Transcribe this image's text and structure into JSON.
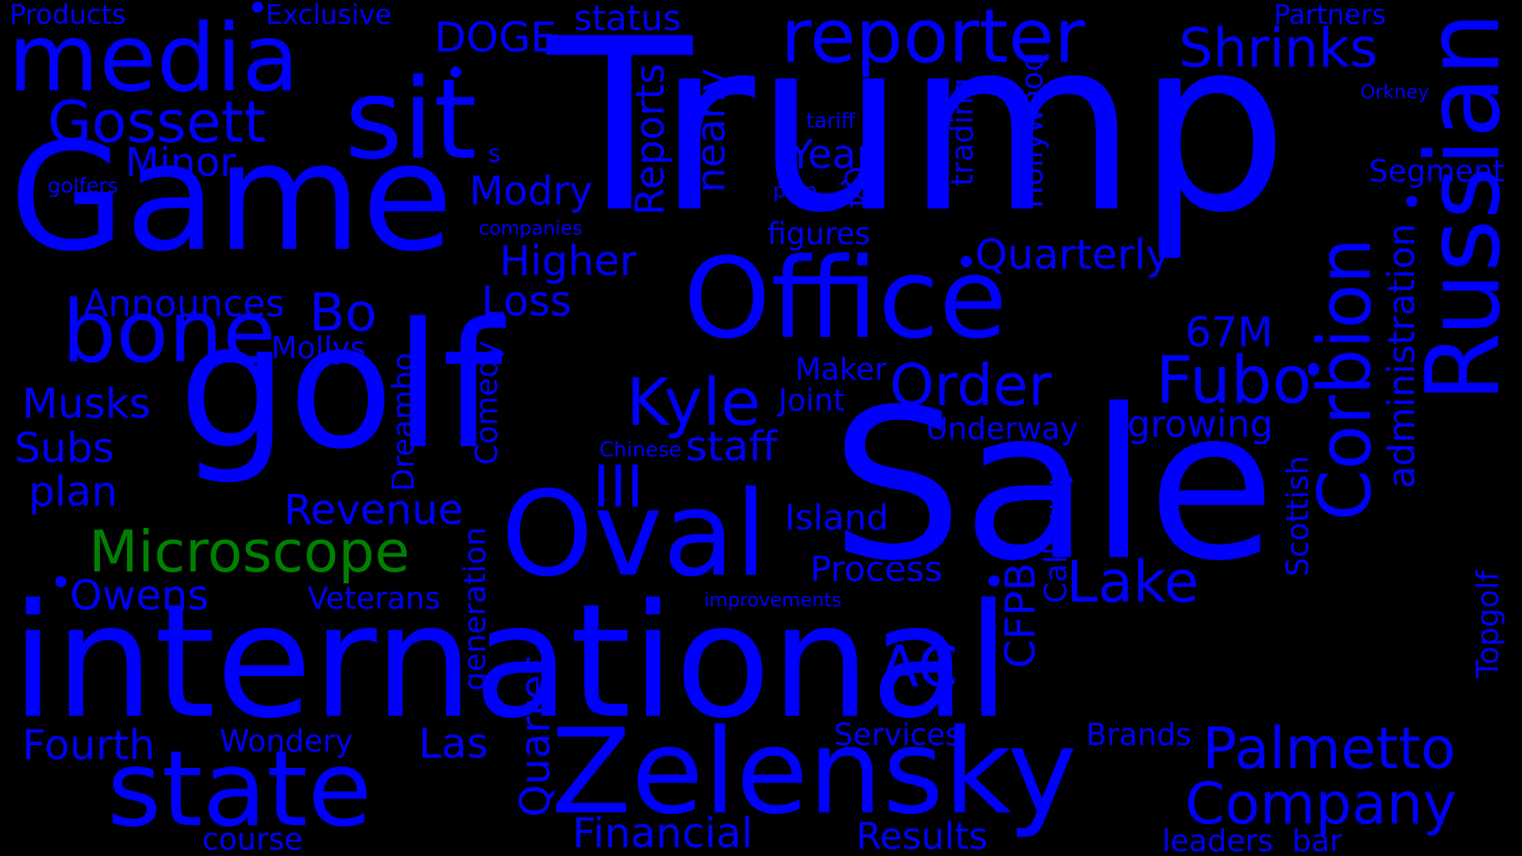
{
  "palette": {
    "background": "#000000",
    "primary": "#0000ff",
    "accent": "#008000"
  },
  "words": [
    {
      "text": "Products",
      "color": "#0000ff"
    },
    {
      "text": "Exclusive",
      "color": "#0000ff"
    },
    {
      "text": "status",
      "color": "#0000ff"
    },
    {
      "text": "Partners",
      "color": "#0000ff"
    },
    {
      "text": "media",
      "color": "#0000ff"
    },
    {
      "text": "DOGE",
      "color": "#0000ff"
    },
    {
      "text": "Trump",
      "color": "#0000ff"
    },
    {
      "text": "reporter",
      "color": "#0000ff"
    },
    {
      "text": "Shrinks",
      "color": "#0000ff"
    },
    {
      "text": "Russian",
      "color": "#0000ff"
    },
    {
      "text": "Orkney",
      "color": "#0000ff"
    },
    {
      "text": "sit",
      "color": "#0000ff"
    },
    {
      "text": "Gossett",
      "color": "#0000ff"
    },
    {
      "text": "tariff",
      "color": "#0000ff"
    },
    {
      "text": "Hollywood",
      "color": "#0000ff"
    },
    {
      "text": "trading",
      "color": "#0000ff"
    },
    {
      "text": "Minor",
      "color": "#0000ff"
    },
    {
      "text": "s",
      "color": "#0000ff"
    },
    {
      "text": "Year",
      "color": "#0000ff"
    },
    {
      "text": "Segment",
      "color": "#0000ff"
    },
    {
      "text": "golfers",
      "color": "#0000ff"
    },
    {
      "text": "Game",
      "color": "#0000ff"
    },
    {
      "text": "Modry",
      "color": "#0000ff"
    },
    {
      "text": "Reports",
      "color": "#0000ff"
    },
    {
      "text": "nearly",
      "color": "#0000ff"
    },
    {
      "text": "pain",
      "color": "#0000ff"
    },
    {
      "text": "Q4",
      "color": "#0000ff"
    },
    {
      "text": "companies",
      "color": "#0000ff"
    },
    {
      "text": "figures",
      "color": "#0000ff"
    },
    {
      "text": "Higher",
      "color": "#0000ff"
    },
    {
      "text": "Quarterly",
      "color": "#0000ff"
    },
    {
      "text": "Corbion",
      "color": "#0000ff"
    },
    {
      "text": "administration",
      "color": "#0000ff"
    },
    {
      "text": "Announces",
      "color": "#0000ff"
    },
    {
      "text": "Loss",
      "color": "#0000ff"
    },
    {
      "text": "Office",
      "color": "#0000ff"
    },
    {
      "text": "Bo",
      "color": "#0000ff"
    },
    {
      "text": "bone",
      "color": "#0000ff"
    },
    {
      "text": "67M",
      "color": "#0000ff"
    },
    {
      "text": "Mollys",
      "color": "#0000ff"
    },
    {
      "text": "Maker",
      "color": "#0000ff"
    },
    {
      "text": "Comedy",
      "color": "#0000ff"
    },
    {
      "text": "Fubo",
      "color": "#0000ff"
    },
    {
      "text": "golf",
      "color": "#0000ff"
    },
    {
      "text": "Kyle",
      "color": "#0000ff"
    },
    {
      "text": "Order",
      "color": "#0000ff"
    },
    {
      "text": "Musks",
      "color": "#0000ff"
    },
    {
      "text": "Joint",
      "color": "#0000ff"
    },
    {
      "text": "growing",
      "color": "#0000ff"
    },
    {
      "text": "Dreambo",
      "color": "#0000ff"
    },
    {
      "text": "Underway",
      "color": "#0000ff"
    },
    {
      "text": "Subs",
      "color": "#0000ff"
    },
    {
      "text": "Chinese",
      "color": "#0000ff"
    },
    {
      "text": "staff",
      "color": "#0000ff"
    },
    {
      "text": "III",
      "color": "#0000ff"
    },
    {
      "text": "Sale",
      "color": "#0000ff"
    },
    {
      "text": "plan",
      "color": "#0000ff"
    },
    {
      "text": "Revenue",
      "color": "#0000ff"
    },
    {
      "text": "Scottish",
      "color": "#0000ff"
    },
    {
      "text": "Callaway",
      "color": "#0000ff"
    },
    {
      "text": "Island",
      "color": "#0000ff"
    },
    {
      "text": "Microscope",
      "color": "#008000"
    },
    {
      "text": "Oval",
      "color": "#0000ff"
    },
    {
      "text": "generation",
      "color": "#0000ff"
    },
    {
      "text": "Process",
      "color": "#0000ff"
    },
    {
      "text": "Lake",
      "color": "#0000ff"
    },
    {
      "text": "Owens",
      "color": "#0000ff"
    },
    {
      "text": "Veterans",
      "color": "#0000ff"
    },
    {
      "text": "improvements",
      "color": "#0000ff"
    },
    {
      "text": "CFPB",
      "color": "#0000ff"
    },
    {
      "text": "Topgolf",
      "color": "#0000ff"
    },
    {
      "text": "international",
      "color": "#0000ff"
    },
    {
      "text": "AC",
      "color": "#0000ff"
    },
    {
      "text": "Quarter",
      "color": "#0000ff"
    },
    {
      "text": "Fourth",
      "color": "#0000ff"
    },
    {
      "text": "Wondery",
      "color": "#0000ff"
    },
    {
      "text": "Las",
      "color": "#0000ff"
    },
    {
      "text": "Services",
      "color": "#0000ff"
    },
    {
      "text": "Brands",
      "color": "#0000ff"
    },
    {
      "text": "Palmetto",
      "color": "#0000ff"
    },
    {
      "text": "state",
      "color": "#0000ff"
    },
    {
      "text": "Zelensky",
      "color": "#0000ff"
    },
    {
      "text": "Company",
      "color": "#0000ff"
    },
    {
      "text": "course",
      "color": "#0000ff"
    },
    {
      "text": "Financial",
      "color": "#0000ff"
    },
    {
      "text": "Results",
      "color": "#0000ff"
    },
    {
      "text": "leaders",
      "color": "#0000ff"
    },
    {
      "text": "bar",
      "color": "#0000ff"
    }
  ]
}
